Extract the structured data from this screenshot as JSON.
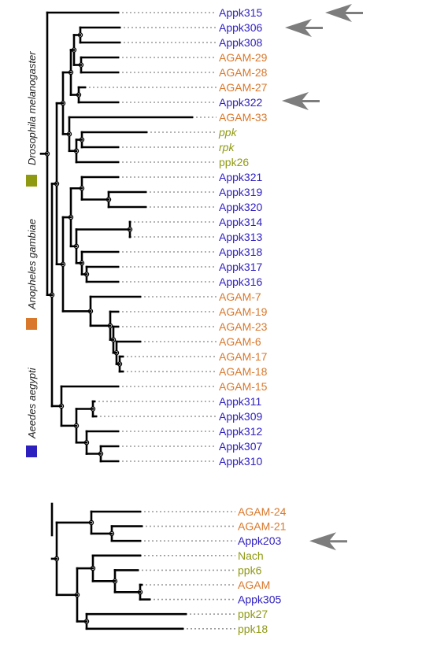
{
  "colors": {
    "aedes": "#2e1fbf",
    "anopheles": "#d9782b",
    "drosophila": "#8f9a12",
    "branch": "#000000",
    "dots": "#9a9a9a",
    "arrow": "#7d7d7d"
  },
  "legend": [
    {
      "species": "Drosophila melanogaster",
      "color_key": "drosophila"
    },
    {
      "species": "Anopheles gambiae",
      "color_key": "anopheles"
    },
    {
      "species": "Aeedes aegypti",
      "color_key": "aedes"
    }
  ],
  "tree_top": {
    "leaves": [
      {
        "label": "Appk315",
        "group": "aedes",
        "italic": false,
        "arrow": false
      },
      {
        "label": "Appk306",
        "group": "aedes",
        "italic": false,
        "arrow": true
      },
      {
        "label": "Appk308",
        "group": "aedes",
        "italic": false,
        "arrow": false
      },
      {
        "label": "AGAM-29",
        "group": "anopheles",
        "italic": false,
        "arrow": false
      },
      {
        "label": "AGAM-28",
        "group": "anopheles",
        "italic": false,
        "arrow": false
      },
      {
        "label": "AGAM-27",
        "group": "anopheles",
        "italic": false,
        "arrow": false
      },
      {
        "label": "Appk322",
        "group": "aedes",
        "italic": false,
        "arrow": true
      },
      {
        "label": "AGAM-33",
        "group": "anopheles",
        "italic": false,
        "arrow": false
      },
      {
        "label": "ppk",
        "group": "drosophila",
        "italic": true,
        "arrow": false
      },
      {
        "label": "rpk",
        "group": "drosophila",
        "italic": true,
        "arrow": false
      },
      {
        "label": "ppk26",
        "group": "drosophila",
        "italic": false,
        "arrow": false
      },
      {
        "label": "Appk321",
        "group": "aedes",
        "italic": false,
        "arrow": false
      },
      {
        "label": "Appk319",
        "group": "aedes",
        "italic": false,
        "arrow": false
      },
      {
        "label": "Appk320",
        "group": "aedes",
        "italic": false,
        "arrow": false
      },
      {
        "label": "Appk314",
        "group": "aedes",
        "italic": false,
        "arrow": false
      },
      {
        "label": "Appk313",
        "group": "aedes",
        "italic": false,
        "arrow": false
      },
      {
        "label": "Appk318",
        "group": "aedes",
        "italic": false,
        "arrow": false
      },
      {
        "label": "Appk317",
        "group": "aedes",
        "italic": false,
        "arrow": false
      },
      {
        "label": "Appk316",
        "group": "aedes",
        "italic": false,
        "arrow": false
      },
      {
        "label": "AGAM-7",
        "group": "anopheles",
        "italic": false,
        "arrow": false
      },
      {
        "label": "AGAM-19",
        "group": "anopheles",
        "italic": false,
        "arrow": false
      },
      {
        "label": "AGAM-23",
        "group": "anopheles",
        "italic": false,
        "arrow": false
      },
      {
        "label": "AGAM-6",
        "group": "anopheles",
        "italic": false,
        "arrow": false
      },
      {
        "label": "AGAM-17",
        "group": "anopheles",
        "italic": false,
        "arrow": false
      },
      {
        "label": "AGAM-18",
        "group": "anopheles",
        "italic": false,
        "arrow": false
      },
      {
        "label": "AGAM-15",
        "group": "anopheles",
        "italic": false,
        "arrow": false
      },
      {
        "label": "Appk311",
        "group": "aedes",
        "italic": false,
        "arrow": false
      },
      {
        "label": "Appk309",
        "group": "aedes",
        "italic": false,
        "arrow": false
      },
      {
        "label": "Appk312",
        "group": "aedes",
        "italic": false,
        "arrow": false
      },
      {
        "label": "Appk307",
        "group": "aedes",
        "italic": false,
        "arrow": false
      },
      {
        "label": "Appk310",
        "group": "aedes",
        "italic": false,
        "arrow": false
      }
    ]
  },
  "tree_bottom": {
    "leaves": [
      {
        "label": "AGAM-24",
        "group": "anopheles",
        "italic": false,
        "arrow": false
      },
      {
        "label": "AGAM-21",
        "group": "anopheles",
        "italic": false,
        "arrow": false
      },
      {
        "label": "Appk203",
        "group": "aedes",
        "italic": false,
        "arrow": true
      },
      {
        "label": "Nach",
        "group": "drosophila",
        "italic": false,
        "arrow": false
      },
      {
        "label": "ppk6",
        "group": "drosophila",
        "italic": false,
        "arrow": false
      },
      {
        "label": "AGAM",
        "group": "anopheles",
        "italic": false,
        "arrow": false
      },
      {
        "label": "Appk305",
        "group": "aedes",
        "italic": false,
        "arrow": false
      },
      {
        "label": "ppk27",
        "group": "drosophila",
        "italic": false,
        "arrow": false
      },
      {
        "label": "ppk18",
        "group": "drosophila",
        "italic": false,
        "arrow": false
      }
    ]
  }
}
